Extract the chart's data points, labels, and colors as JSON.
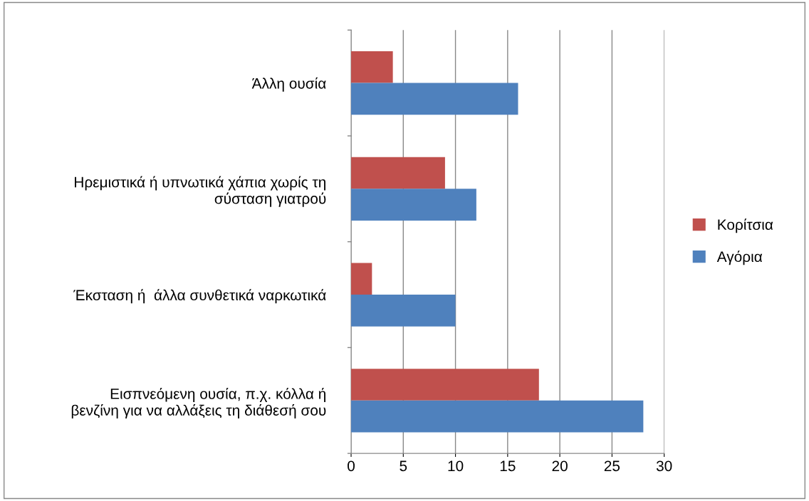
{
  "chart_data": {
    "type": "bar",
    "orientation": "horizontal",
    "categories": [
      "Άλλη ουσία",
      "Ηρεμιστικά ή υπνωτικά χάπια χωρίς τη\nσύσταση γιατρού",
      "Έκσταση ή  άλλα συνθετικά ναρκωτικά",
      "Εισπνεόμενη ουσία, π.χ. κόλλα ή\nβενζίνη για να αλλάξεις τη διάθεσή σου"
    ],
    "series": [
      {
        "name": "Κορίτσια",
        "color": "#c0504d",
        "values": [
          4,
          9,
          2,
          18
        ]
      },
      {
        "name": "Αγόρια",
        "color": "#4f81bd",
        "values": [
          16,
          12,
          10,
          28
        ]
      }
    ],
    "xlim": [
      0,
      30
    ],
    "xticks": [
      0,
      5,
      10,
      15,
      20,
      25,
      30
    ],
    "grid": "x",
    "legend": "right"
  }
}
